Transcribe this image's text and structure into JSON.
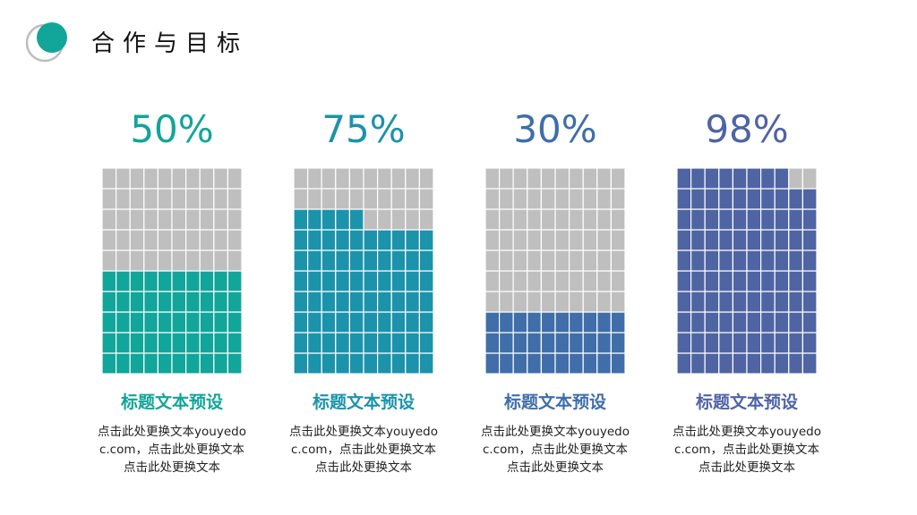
{
  "header": {
    "title": "合作与目标"
  },
  "chart_data": [
    {
      "type": "waffle",
      "values": [
        50
      ],
      "value_labels": [
        "50%"
      ],
      "color": "#12a599",
      "empty_color": "#bfbfbf",
      "title": "标题文本预设",
      "text": "点击此处更换文本youyedoc.com，点击此处更换文本点击此处更换文本"
    },
    {
      "type": "waffle",
      "values": [
        75
      ],
      "value_labels": [
        "75%"
      ],
      "color": "#1b93ab",
      "empty_color": "#bfbfbf",
      "title": "标题文本预设",
      "text": "点击此处更换文本youyedoc.com，点击此处更换文本点击此处更换文本"
    },
    {
      "type": "waffle",
      "values": [
        30
      ],
      "value_labels": [
        "30%"
      ],
      "color": "#3f6ea9",
      "empty_color": "#bfbfbf",
      "title": "标题文本预设",
      "text": "点击此处更换文本youyedoc.com，点击此处更换文本点击此处更换文本"
    },
    {
      "type": "waffle",
      "values": [
        98
      ],
      "value_labels": [
        "98%"
      ],
      "color": "#4f64a3",
      "empty_color": "#bfbfbf",
      "title": "标题文本预设",
      "text": "点击此处更换文本youyedoc.com，点击此处更换文本点击此处更换文本"
    }
  ]
}
